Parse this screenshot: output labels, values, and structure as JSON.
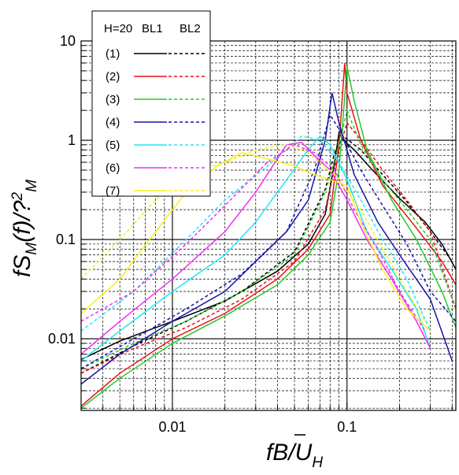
{
  "chart_data": {
    "type": "line",
    "xscale": "log",
    "yscale": "log",
    "xlim": [
      0.003,
      0.42
    ],
    "ylim": [
      0.0019,
      10
    ],
    "grid": true,
    "legend_placement": "top-left",
    "xlabel": "fB/Ū_H",
    "ylabel": "fS_M(f)/?²_M",
    "x_ticks": [
      {
        "v": 0.01,
        "label": "0.01"
      },
      {
        "v": 0.1,
        "label": "0.1"
      }
    ],
    "y_ticks": [
      {
        "v": 0.01,
        "label": "0.01"
      },
      {
        "v": 0.1,
        "label": "0.1"
      },
      {
        "v": 1,
        "label": "1"
      },
      {
        "v": 10,
        "label": "10"
      }
    ],
    "legend": {
      "header": [
        "H=20",
        "BL1",
        "BL2"
      ],
      "entries": [
        {
          "label": "(1)",
          "color": "#000000"
        },
        {
          "label": "(2)",
          "color": "#e8111a"
        },
        {
          "label": "(3)",
          "color": "#22cc22"
        },
        {
          "label": "(4)",
          "color": "#1515a8"
        },
        {
          "label": "(5)",
          "color": "#22e6f2"
        },
        {
          "label": "(6)",
          "color": "#f22ef2"
        },
        {
          "label": "(7)",
          "color": "#f5f01a"
        }
      ]
    },
    "series": [
      {
        "id": "s1-bl1",
        "color": "#000000",
        "dash": "solid",
        "points": [
          [
            0.003,
            0.0062
          ],
          [
            0.005,
            0.0095
          ],
          [
            0.01,
            0.015
          ],
          [
            0.02,
            0.024
          ],
          [
            0.04,
            0.048
          ],
          [
            0.06,
            0.09
          ],
          [
            0.075,
            0.18
          ],
          [
            0.085,
            0.6
          ],
          [
            0.09,
            1.2
          ],
          [
            0.095,
            1.0
          ],
          [
            0.11,
            0.8
          ],
          [
            0.14,
            0.5
          ],
          [
            0.2,
            0.26
          ],
          [
            0.28,
            0.15
          ],
          [
            0.35,
            0.09
          ],
          [
            0.42,
            0.05
          ]
        ]
      },
      {
        "id": "s1-bl2",
        "color": "#000000",
        "dash": "dashed",
        "points": [
          [
            0.003,
            0.0045
          ],
          [
            0.006,
            0.0085
          ],
          [
            0.012,
            0.015
          ],
          [
            0.025,
            0.03
          ],
          [
            0.05,
            0.075
          ],
          [
            0.075,
            0.32
          ],
          [
            0.085,
            0.75
          ],
          [
            0.095,
            1.1
          ],
          [
            0.12,
            0.8
          ],
          [
            0.16,
            0.45
          ],
          [
            0.22,
            0.24
          ],
          [
            0.3,
            0.12
          ],
          [
            0.4,
            0.06
          ]
        ]
      },
      {
        "id": "s2-bl1",
        "color": "#e8111a",
        "dash": "solid",
        "points": [
          [
            0.003,
            0.0021
          ],
          [
            0.005,
            0.0045
          ],
          [
            0.01,
            0.01
          ],
          [
            0.02,
            0.018
          ],
          [
            0.04,
            0.04
          ],
          [
            0.06,
            0.08
          ],
          [
            0.08,
            0.18
          ],
          [
            0.09,
            0.9
          ],
          [
            0.097,
            6.0
          ],
          [
            0.1,
            3.0
          ],
          [
            0.12,
            1.0
          ],
          [
            0.16,
            0.35
          ],
          [
            0.25,
            0.13
          ],
          [
            0.35,
            0.06
          ],
          [
            0.42,
            0.035
          ]
        ]
      },
      {
        "id": "s2-bl2",
        "color": "#e8111a",
        "dash": "dashed",
        "points": [
          [
            0.003,
            0.0045
          ],
          [
            0.006,
            0.008
          ],
          [
            0.012,
            0.013
          ],
          [
            0.025,
            0.025
          ],
          [
            0.05,
            0.06
          ],
          [
            0.075,
            0.2
          ],
          [
            0.09,
            0.8
          ],
          [
            0.1,
            1.5
          ],
          [
            0.12,
            1.0
          ],
          [
            0.16,
            0.5
          ],
          [
            0.22,
            0.25
          ],
          [
            0.3,
            0.12
          ],
          [
            0.42,
            0.02
          ]
        ]
      },
      {
        "id": "s3-bl1",
        "color": "#22cc22",
        "dash": "solid",
        "points": [
          [
            0.003,
            0.002
          ],
          [
            0.005,
            0.004
          ],
          [
            0.01,
            0.009
          ],
          [
            0.02,
            0.017
          ],
          [
            0.04,
            0.035
          ],
          [
            0.06,
            0.07
          ],
          [
            0.08,
            0.15
          ],
          [
            0.09,
            0.5
          ],
          [
            0.1,
            5.5
          ],
          [
            0.11,
            2.5
          ],
          [
            0.13,
            0.8
          ],
          [
            0.18,
            0.25
          ],
          [
            0.25,
            0.1
          ],
          [
            0.35,
            0.03
          ],
          [
            0.42,
            0.013
          ]
        ]
      },
      {
        "id": "s3-bl2",
        "color": "#22cc22",
        "dash": "dashed",
        "points": [
          [
            0.003,
            0.005
          ],
          [
            0.006,
            0.009
          ],
          [
            0.012,
            0.015
          ],
          [
            0.025,
            0.03
          ],
          [
            0.05,
            0.07
          ],
          [
            0.075,
            0.3
          ],
          [
            0.09,
            0.9
          ],
          [
            0.1,
            2.0
          ],
          [
            0.12,
            0.9
          ],
          [
            0.16,
            0.4
          ],
          [
            0.22,
            0.2
          ],
          [
            0.3,
            0.1
          ],
          [
            0.42,
            0.02
          ]
        ]
      },
      {
        "id": "s4-bl1",
        "color": "#1515a8",
        "dash": "solid",
        "points": [
          [
            0.003,
            0.0035
          ],
          [
            0.005,
            0.007
          ],
          [
            0.01,
            0.015
          ],
          [
            0.02,
            0.03
          ],
          [
            0.03,
            0.06
          ],
          [
            0.045,
            0.12
          ],
          [
            0.06,
            0.25
          ],
          [
            0.075,
            1.0
          ],
          [
            0.082,
            3.0
          ],
          [
            0.09,
            1.5
          ],
          [
            0.11,
            0.45
          ],
          [
            0.15,
            0.15
          ],
          [
            0.2,
            0.07
          ],
          [
            0.3,
            0.025
          ],
          [
            0.4,
            0.006
          ]
        ]
      },
      {
        "id": "s4-bl2",
        "color": "#1515a8",
        "dash": "dashed",
        "points": [
          [
            0.003,
            0.005
          ],
          [
            0.006,
            0.01
          ],
          [
            0.012,
            0.02
          ],
          [
            0.025,
            0.045
          ],
          [
            0.045,
            0.12
          ],
          [
            0.065,
            0.5
          ],
          [
            0.08,
            1.8
          ],
          [
            0.09,
            1.3
          ],
          [
            0.12,
            0.5
          ],
          [
            0.16,
            0.22
          ],
          [
            0.22,
            0.09
          ],
          [
            0.3,
            0.03
          ],
          [
            0.42,
            0.015
          ]
        ]
      },
      {
        "id": "s5-bl1",
        "color": "#22e6f2",
        "dash": "solid",
        "points": [
          [
            0.003,
            0.006
          ],
          [
            0.005,
            0.012
          ],
          [
            0.01,
            0.03
          ],
          [
            0.02,
            0.07
          ],
          [
            0.03,
            0.15
          ],
          [
            0.045,
            0.4
          ],
          [
            0.06,
            0.8
          ],
          [
            0.07,
            1.1
          ],
          [
            0.08,
            0.9
          ],
          [
            0.1,
            0.4
          ],
          [
            0.13,
            0.12
          ],
          [
            0.18,
            0.05
          ],
          [
            0.25,
            0.02
          ],
          [
            0.3,
            0.008
          ]
        ]
      },
      {
        "id": "s5-bl2",
        "color": "#22e6f2",
        "dash": "dashed",
        "points": [
          [
            0.003,
            0.012
          ],
          [
            0.006,
            0.03
          ],
          [
            0.012,
            0.1
          ],
          [
            0.02,
            0.25
          ],
          [
            0.035,
            0.55
          ],
          [
            0.055,
            1.1
          ],
          [
            0.07,
            1.0
          ],
          [
            0.09,
            0.6
          ],
          [
            0.12,
            0.25
          ],
          [
            0.16,
            0.1
          ],
          [
            0.22,
            0.04
          ],
          [
            0.3,
            0.012
          ]
        ]
      },
      {
        "id": "s6-bl1",
        "color": "#f22ef2",
        "dash": "solid",
        "points": [
          [
            0.003,
            0.007
          ],
          [
            0.005,
            0.015
          ],
          [
            0.01,
            0.04
          ],
          [
            0.02,
            0.12
          ],
          [
            0.03,
            0.3
          ],
          [
            0.045,
            0.9
          ],
          [
            0.055,
            0.95
          ],
          [
            0.065,
            0.7
          ],
          [
            0.08,
            0.5
          ],
          [
            0.1,
            0.25
          ],
          [
            0.13,
            0.1
          ],
          [
            0.18,
            0.04
          ],
          [
            0.25,
            0.015
          ],
          [
            0.3,
            0.008
          ]
        ]
      },
      {
        "id": "s6-bl2",
        "color": "#f22ef2",
        "dash": "dashed",
        "points": [
          [
            0.003,
            0.015
          ],
          [
            0.006,
            0.03
          ],
          [
            0.012,
            0.09
          ],
          [
            0.02,
            0.22
          ],
          [
            0.035,
            0.6
          ],
          [
            0.05,
            0.9
          ],
          [
            0.065,
            0.75
          ],
          [
            0.085,
            0.5
          ],
          [
            0.11,
            0.2
          ],
          [
            0.15,
            0.08
          ],
          [
            0.2,
            0.03
          ],
          [
            0.28,
            0.012
          ]
        ]
      },
      {
        "id": "s7-bl1",
        "color": "#f5f01a",
        "dash": "solid",
        "points": [
          [
            0.003,
            0.018
          ],
          [
            0.005,
            0.04
          ],
          [
            0.008,
            0.12
          ],
          [
            0.012,
            0.3
          ],
          [
            0.018,
            0.55
          ],
          [
            0.025,
            0.75
          ],
          [
            0.035,
            0.65
          ],
          [
            0.05,
            0.55
          ],
          [
            0.065,
            0.45
          ],
          [
            0.08,
            0.4
          ],
          [
            0.1,
            0.35
          ],
          [
            0.12,
            0.15
          ],
          [
            0.16,
            0.05
          ],
          [
            0.22,
            0.02
          ],
          [
            0.3,
            0.012
          ]
        ]
      },
      {
        "id": "s7-bl2",
        "color": "#f5f01a",
        "dash": "dashed",
        "points": [
          [
            0.003,
            0.04
          ],
          [
            0.005,
            0.1
          ],
          [
            0.008,
            0.25
          ],
          [
            0.012,
            0.45
          ],
          [
            0.02,
            0.6
          ],
          [
            0.03,
            0.8
          ],
          [
            0.045,
            0.9
          ],
          [
            0.06,
            0.75
          ],
          [
            0.085,
            0.45
          ],
          [
            0.12,
            0.2
          ],
          [
            0.16,
            0.08
          ],
          [
            0.22,
            0.03
          ],
          [
            0.28,
            0.015
          ]
        ]
      }
    ]
  }
}
